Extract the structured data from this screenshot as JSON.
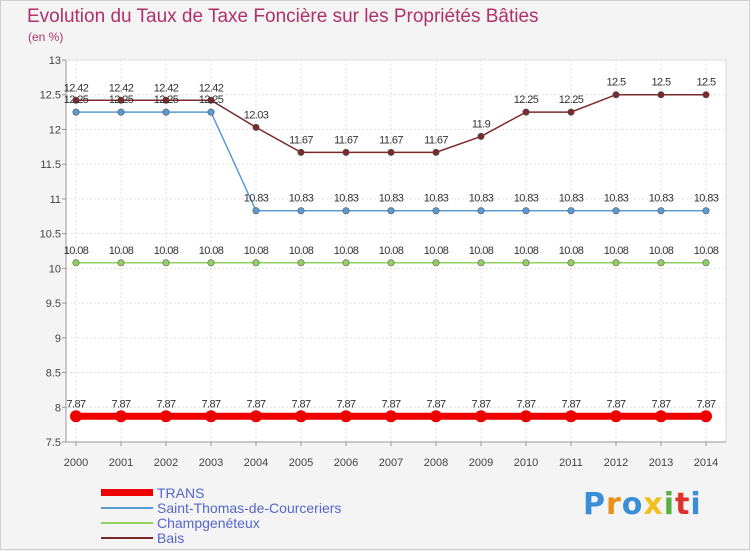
{
  "title": "Evolution du Taux de Taxe Foncière sur les Propriétés Bâties",
  "unit_label": "(en %)",
  "logo": {
    "letters": [
      "P",
      "r",
      "o",
      "x",
      "i",
      "t",
      "i"
    ],
    "colors": [
      "#3a8ed8",
      "#e8901a",
      "#3a8ed8",
      "#f0c020",
      "#58b040",
      "#e0302a",
      "#3a8ed8"
    ]
  },
  "chart_data": {
    "type": "line",
    "title": "Evolution du Taux de Taxe Foncière sur les Propriétés Bâties",
    "ylabel": "(en %)",
    "xlabel": "",
    "x": [
      "2000",
      "2001",
      "2002",
      "2003",
      "2004",
      "2005",
      "2006",
      "2007",
      "2008",
      "2009",
      "2010",
      "2011",
      "2012",
      "2013",
      "2014"
    ],
    "ylim": [
      7.5,
      13
    ],
    "yticks": [
      "7.5",
      "8",
      "8.5",
      "9",
      "9.5",
      "10",
      "10.5",
      "11",
      "11.5",
      "12",
      "12.5",
      "13"
    ],
    "grid": true,
    "legend_position": "bottom-left",
    "series": [
      {
        "name": "TRANS",
        "color": "#ee0000",
        "values": [
          7.87,
          7.87,
          7.87,
          7.87,
          7.87,
          7.87,
          7.87,
          7.87,
          7.87,
          7.87,
          7.87,
          7.87,
          7.87,
          7.87,
          7.87
        ],
        "labels": [
          "7.87",
          "7.87",
          "7.87",
          "7.87",
          "7.87",
          "7.87",
          "7.87",
          "7.87",
          "7.87",
          "7.87",
          "7.87",
          "7.87",
          "7.87",
          "7.87",
          "7.87"
        ]
      },
      {
        "name": "Saint-Thomas-de-Courceriers",
        "color": "#5b9bd5",
        "values": [
          12.25,
          12.25,
          12.25,
          12.25,
          10.83,
          10.83,
          10.83,
          10.83,
          10.83,
          10.83,
          10.83,
          10.83,
          10.83,
          10.83,
          10.83
        ],
        "labels": [
          "12.25",
          "12.25",
          "12.25",
          "12.25",
          "10.83",
          "10.83",
          "10.83",
          "10.83",
          "10.83",
          "10.83",
          "10.83",
          "10.83",
          "10.83",
          "10.83",
          "10.83"
        ]
      },
      {
        "name": "Champgenéteux",
        "color": "#90d060",
        "values": [
          10.08,
          10.08,
          10.08,
          10.08,
          10.08,
          10.08,
          10.08,
          10.08,
          10.08,
          10.08,
          10.08,
          10.08,
          10.08,
          10.08,
          10.08
        ],
        "labels": [
          "10.08",
          "10.08",
          "10.08",
          "10.08",
          "10.08",
          "10.08",
          "10.08",
          "10.08",
          "10.08",
          "10.08",
          "10.08",
          "10.08",
          "10.08",
          "10.08",
          "10.08"
        ]
      },
      {
        "name": "Bais",
        "color": "#7a2a2a",
        "values": [
          12.42,
          12.42,
          12.42,
          12.42,
          12.03,
          11.67,
          11.67,
          11.67,
          11.67,
          11.9,
          12.25,
          12.25,
          12.5,
          12.5,
          12.5
        ],
        "labels": [
          "12.42",
          "12.42",
          "12.42",
          "12.42",
          "12.03",
          "11.67",
          "11.67",
          "11.67",
          "11.67",
          "11.9",
          "12.25",
          "12.25",
          "12.5",
          "12.5",
          "12.5"
        ]
      }
    ]
  }
}
